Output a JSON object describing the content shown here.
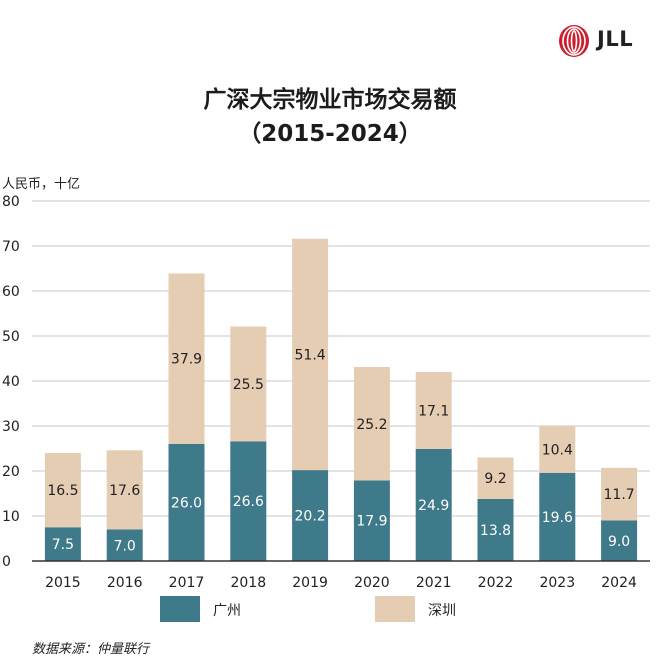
{
  "brand": {
    "name": "JLL",
    "logo_color": "#cc1f2e"
  },
  "header": {
    "title_line1": "广深大宗物业市场交易额",
    "title_line2": "（2015-2024）"
  },
  "footer": {
    "source": "数据来源：仲量联行"
  },
  "colors": {
    "guangzhou": "#3e7a89",
    "shenzhen": "#e5cdb3",
    "grid": "#c9c9c9",
    "axis": "#333333"
  },
  "chart_data": {
    "type": "bar",
    "stacked": true,
    "title": "广深大宗物业市场交易额（2015-2024）",
    "ylabel": "人民币，十亿",
    "xlabel": "",
    "ylim": [
      0,
      80
    ],
    "yticks": [
      "0",
      "10",
      "20",
      "30",
      "40",
      "50",
      "60",
      "70",
      "80"
    ],
    "grid": true,
    "legend_position": "bottom",
    "categories": [
      "2015",
      "2016",
      "2017",
      "2018",
      "2019",
      "2020",
      "2021",
      "2022",
      "2023",
      "2024"
    ],
    "series": [
      {
        "name": "广州",
        "values": [
          7.5,
          7.0,
          26.0,
          26.6,
          20.2,
          17.9,
          24.9,
          13.8,
          19.6,
          9.0
        ],
        "labels": [
          "7.5",
          "7.0",
          "26.0",
          "26.6",
          "20.2",
          "17.9",
          "24.9",
          "13.8",
          "19.6",
          "9.0"
        ]
      },
      {
        "name": "深圳",
        "values": [
          16.5,
          17.6,
          37.9,
          25.5,
          51.4,
          25.2,
          17.1,
          9.2,
          10.4,
          11.7
        ],
        "labels": [
          "16.5",
          "17.6",
          "37.9",
          "25.5",
          "51.4",
          "25.2",
          "17.1",
          "9.2",
          "10.4",
          "11.7"
        ]
      }
    ]
  }
}
